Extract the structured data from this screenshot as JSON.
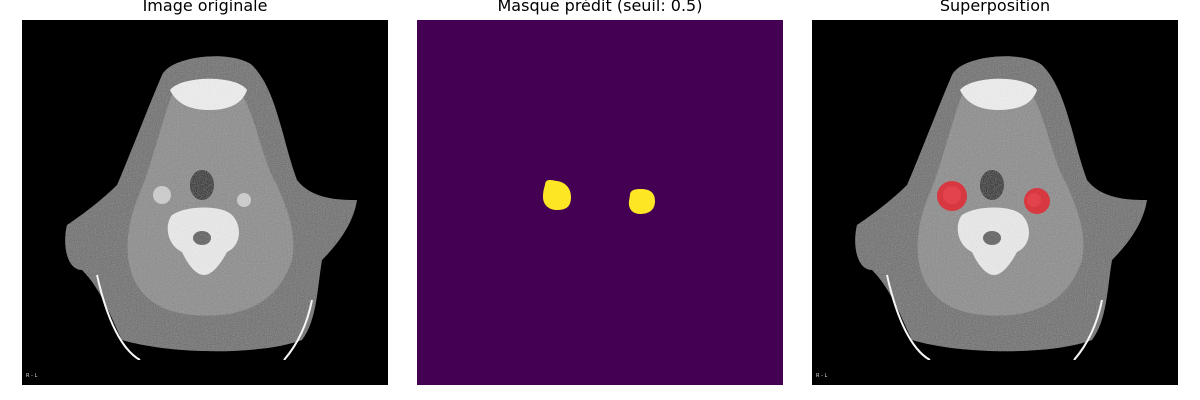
{
  "panels": [
    {
      "title": "Image originale"
    },
    {
      "title": "Masque prédit (seuil: 0.5)"
    },
    {
      "title": "Superposition"
    }
  ],
  "scan_label": "R - L",
  "colors": {
    "mask_background": "#440154",
    "mask_foreground": "#fde725",
    "overlay_highlight": "#e8202a"
  }
}
